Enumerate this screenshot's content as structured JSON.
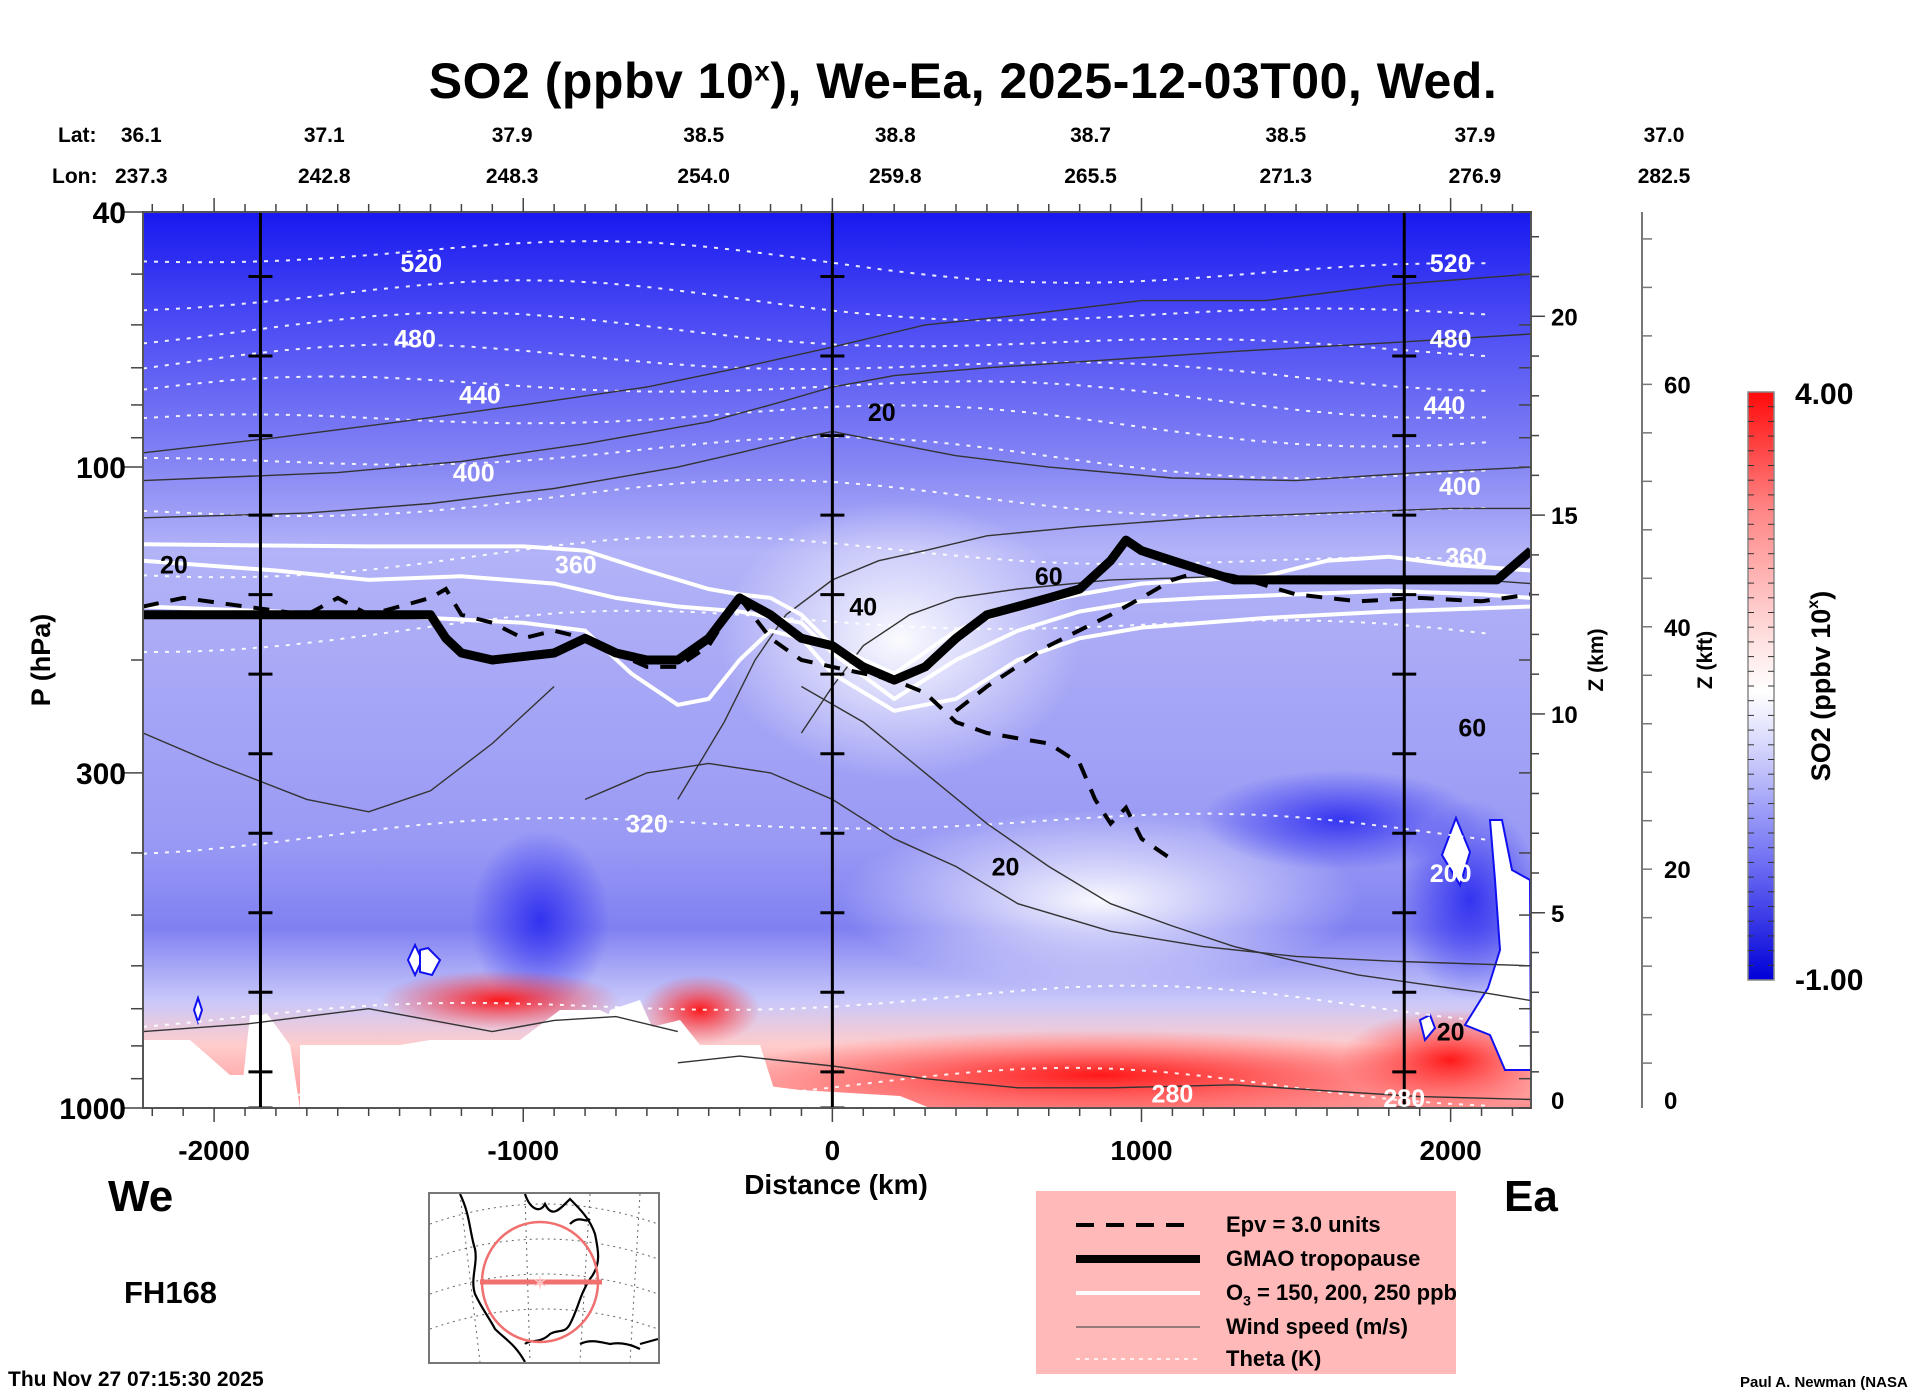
{
  "header": {
    "title_main": "SO2 (ppbv 10",
    "title_sup": "x",
    "title_rest": "), We-Ea, 2025-12-03T00, Wed."
  },
  "location": {
    "lat_label": "Lat:",
    "lon_label": "Lon:",
    "lat": [
      "36.1",
      "37.1",
      "37.9",
      "38.5",
      "38.8",
      "38.7",
      "38.5",
      "37.9",
      "37.0"
    ],
    "lon": [
      "237.3",
      "242.8",
      "248.3",
      "254.0",
      "259.8",
      "265.5",
      "271.3",
      "276.9",
      "282.5"
    ]
  },
  "footer": {
    "west_label": "We",
    "east_label": "Ea",
    "forecast_hour": "FH168",
    "timestamp": "Thu Nov 27 07:15:30 2025",
    "credit": "Paul A. Newman (NASA"
  },
  "legend": {
    "items": [
      {
        "style": "dashed-thick",
        "label": "Epv = 3.0 units"
      },
      {
        "style": "solid-heavy",
        "label": "GMAO tropopause"
      },
      {
        "style": "solid-white",
        "label_pre": "O",
        "label_sub": "3",
        "label_post": " = 150, 200, 250 ppb"
      },
      {
        "style": "solid-thin",
        "label": "Wind speed (m/s)"
      },
      {
        "style": "dotted-white",
        "label": "Theta (K)"
      }
    ]
  },
  "colorbar": {
    "max_label": "4.00",
    "min_label": "-1.00",
    "title_main": "SO2 (ppbv 10",
    "title_sup": "x",
    "title_rest": ")"
  },
  "colors": {
    "colormap_low": "#0000e6",
    "colormap_mid": "#ffffff",
    "colormap_high": "#ff0000",
    "legend_bg": "#ffb9b9",
    "tropopause": "#000000",
    "ozone": "#ffffff",
    "wind": "#333333",
    "theta": "#ffffff",
    "map_track": "#f07070"
  },
  "chart_data": {
    "type": "heatmap",
    "title": "SO2 (ppbv 10^x), We-Ea, 2025-12-03T00, Wed.",
    "xlabel": "Distance (km)",
    "ylabel": "P (hPa)",
    "y2label": "Z (km)",
    "y3label": "Z (kft)",
    "xlim": [
      -2230,
      2260
    ],
    "ylim": [
      1000,
      40
    ],
    "yscale": "log",
    "x_ticks": [
      -2000,
      -1000,
      0,
      1000,
      2000
    ],
    "x_tick_labels": [
      "-2000",
      "-1000",
      "0",
      "1000",
      "2000"
    ],
    "y_ticks": [
      40,
      100,
      300,
      1000
    ],
    "y_tick_labels": [
      "40",
      "100",
      "300",
      "1000"
    ],
    "zkm_ticks": [
      0,
      5,
      10,
      15,
      20
    ],
    "zkm_tick_labels": [
      "0",
      "5",
      "10",
      "15",
      "20"
    ],
    "zkft_ticks": [
      0,
      20,
      40,
      60
    ],
    "zkft_tick_labels": [
      "0",
      "20",
      "40",
      "60"
    ],
    "colorbar_range": [
      -1.0,
      4.0
    ],
    "colorbar_levels": 40,
    "vertical_markers_km": [
      -1850,
      0,
      1850
    ],
    "theta_levels": [
      {
        "value": 520,
        "p": 48
      },
      {
        "value": 500,
        "p": 56
      },
      {
        "value": 480,
        "p": 63
      },
      {
        "value": 460,
        "p": 70
      },
      {
        "value": 440,
        "p": 77
      },
      {
        "value": 420,
        "p": 86
      },
      {
        "value": 400,
        "p": 98
      },
      {
        "value": 380,
        "p": 115
      },
      {
        "value": 360,
        "p": 140
      },
      {
        "value": 340,
        "p": 180
      },
      {
        "value": 320,
        "p": 370
      },
      {
        "value": 300,
        "p": 700
      },
      {
        "value": 280,
        "p": 950
      }
    ],
    "theta_labels": [
      {
        "text": "520",
        "x": -1330,
        "p": 48
      },
      {
        "text": "480",
        "x": -1350,
        "p": 63
      },
      {
        "text": "440",
        "x": -1140,
        "p": 77
      },
      {
        "text": "400",
        "x": -1160,
        "p": 102
      },
      {
        "text": "360",
        "x": -830,
        "p": 142
      },
      {
        "text": "320",
        "x": -600,
        "p": 360
      },
      {
        "text": "280",
        "x": 1100,
        "p": 950
      },
      {
        "text": "280",
        "x": 1850,
        "p": 965
      },
      {
        "text": "520",
        "x": 2000,
        "p": 48
      },
      {
        "text": "480",
        "x": 2000,
        "p": 63
      },
      {
        "text": "440",
        "x": 1980,
        "p": 80
      },
      {
        "text": "400",
        "x": 2030,
        "p": 107
      },
      {
        "text": "360",
        "x": 2050,
        "p": 138
      },
      {
        "text": "200",
        "x": 2000,
        "p": 430
      }
    ],
    "wind_labels": [
      {
        "text": "20",
        "x": 160,
        "p": 82
      },
      {
        "text": "20",
        "x": -2130,
        "p": 142
      },
      {
        "text": "40",
        "x": 100,
        "p": 165
      },
      {
        "text": "60",
        "x": 700,
        "p": 148
      },
      {
        "text": "60",
        "x": 2070,
        "p": 255
      },
      {
        "text": "20",
        "x": 560,
        "p": 420
      },
      {
        "text": "20",
        "x": 2000,
        "p": 760
      }
    ],
    "tropopause": {
      "x": [
        -2230,
        -1300,
        -1250,
        -1200,
        -1100,
        -900,
        -800,
        -700,
        -600,
        -500,
        -400,
        -300,
        -200,
        -100,
        0,
        100,
        200,
        300,
        400,
        500,
        600,
        700,
        800,
        900,
        950,
        1000,
        1100,
        1200,
        1300,
        1500,
        1700,
        1900,
        2150,
        2260
      ],
      "p": [
        170,
        170,
        185,
        195,
        200,
        195,
        185,
        195,
        200,
        200,
        185,
        160,
        170,
        185,
        190,
        205,
        215,
        205,
        185,
        170,
        165,
        160,
        155,
        140,
        130,
        135,
        140,
        145,
        150,
        150,
        150,
        150,
        150,
        135
      ]
    },
    "epv_3pvu": {
      "x": [
        -2230,
        -2100,
        -1900,
        -1700,
        -1600,
        -1500,
        -1400,
        -1300,
        -1250,
        -1200,
        -1100,
        -1000,
        -900,
        -800,
        -700,
        -600,
        -500,
        -400,
        -300,
        -200,
        -100,
        0,
        200,
        300,
        400,
        500,
        600,
        700,
        800,
        850,
        900,
        950,
        1000,
        1100
      ],
      "p": [
        165,
        160,
        165,
        170,
        160,
        170,
        165,
        160,
        155,
        170,
        175,
        185,
        180,
        185,
        195,
        205,
        205,
        190,
        160,
        185,
        200,
        205,
        215,
        225,
        250,
        260,
        265,
        270,
        290,
        330,
        360,
        340,
        380,
        410
      ]
    },
    "epv_3pvu_b": {
      "x": [
        400,
        500,
        700,
        900,
        1000,
        1100,
        1200,
        1300,
        1500,
        1700,
        1900,
        2100,
        2260
      ],
      "p": [
        240,
        220,
        190,
        170,
        160,
        150,
        145,
        148,
        158,
        162,
        160,
        162,
        158
      ]
    },
    "ozone_150": {
      "x": [
        -2230,
        -1500,
        -1000,
        -800,
        -600,
        -400,
        -300,
        -200,
        -100,
        0,
        200,
        400,
        600,
        800,
        1000,
        1200,
        1400,
        1600,
        1800,
        2000,
        2260
      ],
      "p": [
        132,
        133,
        133,
        135,
        145,
        155,
        158,
        160,
        170,
        190,
        210,
        180,
        165,
        158,
        152,
        150,
        148,
        140,
        138,
        142,
        145
      ]
    },
    "ozone_200": {
      "x": [
        -2230,
        -1800,
        -1500,
        -1200,
        -900,
        -700,
        -500,
        -300,
        -100,
        0,
        200,
        400,
        600,
        800,
        1000,
        1200,
        1500,
        1800,
        2100,
        2260
      ],
      "p": [
        140,
        145,
        150,
        148,
        152,
        160,
        165,
        168,
        175,
        195,
        230,
        200,
        180,
        168,
        162,
        160,
        158,
        156,
        158,
        160
      ]
    },
    "ozone_250": {
      "x": [
        -2230,
        -1800,
        -1300,
        -1000,
        -800,
        -650,
        -500,
        -400,
        -300,
        -200,
        -100,
        0,
        200,
        400,
        600,
        800,
        1000,
        1400,
        1800,
        2260
      ],
      "p": [
        165,
        168,
        172,
        175,
        180,
        210,
        235,
        230,
        200,
        180,
        185,
        210,
        240,
        230,
        200,
        185,
        178,
        172,
        168,
        165
      ]
    }
  }
}
